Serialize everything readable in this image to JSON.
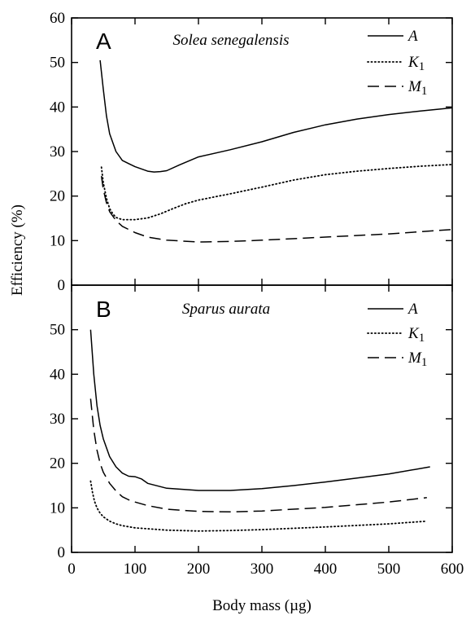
{
  "chart_data": [
    {
      "type": "line",
      "panel_label": "A",
      "species": "Solea senegalensis",
      "xlabel": "Body mass (µg)",
      "ylabel": "Efficiency (%)",
      "xlim": [
        0,
        600
      ],
      "ylim": [
        0,
        60
      ],
      "x_ticks": [
        "0",
        "100",
        "200",
        "300",
        "400",
        "500",
        "600"
      ],
      "y_ticks": [
        "0",
        "10",
        "20",
        "30",
        "40",
        "50",
        "60"
      ],
      "legend_position": "top-right",
      "series": [
        {
          "name": "A",
          "legend_main": "A",
          "legend_sub": "",
          "dash": "solid",
          "x": [
            45,
            50,
            55,
            60,
            70,
            80,
            90,
            100,
            110,
            120,
            130,
            140,
            150,
            170,
            200,
            250,
            300,
            350,
            400,
            450,
            500,
            550,
            600
          ],
          "y": [
            50.5,
            44,
            38,
            34,
            30,
            28,
            27.3,
            26.6,
            26.1,
            25.6,
            25.4,
            25.5,
            25.7,
            27,
            28.8,
            30.4,
            32.2,
            34.3,
            36,
            37.3,
            38.3,
            39.1,
            39.8
          ]
        },
        {
          "name": "K1",
          "legend_main": "K",
          "legend_sub": "1",
          "dash": "dotted",
          "x": [
            47,
            50,
            55,
            60,
            65,
            70,
            80,
            100,
            120,
            140,
            160,
            180,
            200,
            250,
            300,
            350,
            400,
            450,
            500,
            550,
            600
          ],
          "y": [
            26.5,
            23,
            19.5,
            17.2,
            16,
            15.2,
            14.7,
            14.7,
            15.1,
            16,
            17.2,
            18.3,
            19.1,
            20.5,
            22,
            23.6,
            24.8,
            25.6,
            26.2,
            26.7,
            27.1
          ]
        },
        {
          "name": "M1",
          "legend_main": "M",
          "legend_sub": "1",
          "dash": "dashed",
          "x": [
            47,
            50,
            55,
            60,
            70,
            80,
            100,
            120,
            150,
            200,
            250,
            300,
            400,
            500,
            600
          ],
          "y": [
            24.5,
            21.5,
            18.5,
            16.5,
            14.5,
            13.2,
            11.8,
            10.8,
            10.1,
            9.7,
            9.8,
            10.1,
            10.8,
            11.5,
            12.5
          ]
        }
      ]
    },
    {
      "type": "line",
      "panel_label": "B",
      "species": "Sparus aurata",
      "xlabel": "Body mass (µg)",
      "ylabel": "Efficiency (%)",
      "xlim": [
        0,
        600
      ],
      "ylim": [
        0,
        60
      ],
      "x_ticks": [
        "0",
        "100",
        "200",
        "300",
        "400",
        "500",
        "600"
      ],
      "y_ticks": [
        "0",
        "10",
        "20",
        "30",
        "40",
        "50"
      ],
      "legend_position": "top-right",
      "series": [
        {
          "name": "A",
          "legend_main": "A",
          "legend_sub": "",
          "dash": "solid",
          "x": [
            30,
            35,
            40,
            45,
            50,
            60,
            70,
            80,
            90,
            100,
            110,
            120,
            150,
            200,
            250,
            300,
            350,
            400,
            450,
            500,
            565
          ],
          "y": [
            50,
            40,
            33,
            28.5,
            25.5,
            21.5,
            19.2,
            17.8,
            17.1,
            17,
            16.5,
            15.5,
            14.4,
            13.9,
            13.9,
            14.3,
            15,
            15.8,
            16.7,
            17.6,
            19.2
          ]
        },
        {
          "name": "K1",
          "legend_main": "K",
          "legend_sub": "1",
          "dash": "dotted",
          "x": [
            30,
            33,
            36,
            40,
            45,
            50,
            60,
            70,
            80,
            100,
            150,
            200,
            250,
            300,
            400,
            500,
            560
          ],
          "y": [
            16,
            13.5,
            11.5,
            10,
            8.8,
            8,
            7,
            6.4,
            6,
            5.5,
            5,
            4.8,
            4.9,
            5.1,
            5.7,
            6.4,
            7
          ]
        },
        {
          "name": "M1",
          "legend_main": "M",
          "legend_sub": "1",
          "dash": "dashed",
          "x": [
            30,
            35,
            40,
            45,
            50,
            60,
            70,
            80,
            90,
            100,
            120,
            150,
            200,
            250,
            300,
            400,
            500,
            560
          ],
          "y": [
            34.5,
            27.5,
            23,
            20,
            18,
            15.5,
            13.8,
            12.5,
            11.8,
            11.3,
            10.5,
            9.7,
            9.2,
            9.1,
            9.3,
            10.1,
            11.3,
            12.3
          ]
        }
      ]
    }
  ]
}
